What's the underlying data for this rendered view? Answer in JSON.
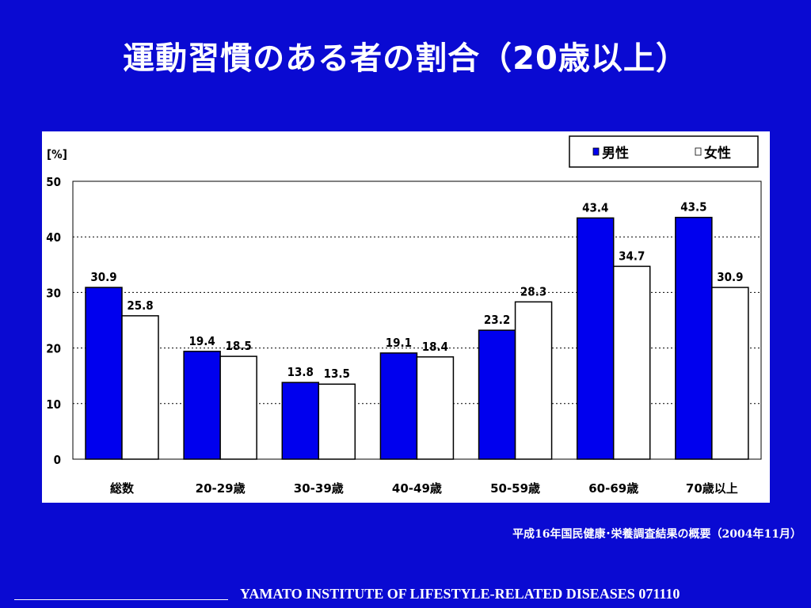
{
  "slide": {
    "title": "運動習慣のある者の割合（20歳以上）",
    "source": "平成16年国民健康･栄養調査結果の概要（2004年11月）",
    "footer": "YAMATO INSTITUTE OF LIFESTYLE-RELATED DISEASES  071110"
  },
  "chart_data": {
    "type": "bar",
    "title": "",
    "unit_label": "[%]",
    "xlabel": "",
    "ylabel": "",
    "ylim": [
      0,
      50
    ],
    "yticks": [
      "0",
      "10",
      "20",
      "30",
      "40",
      "50"
    ],
    "grid": "horizontal dotted",
    "legend_position": "top-right",
    "categories": [
      "総数",
      "20-29歳",
      "30-39歳",
      "40-49歳",
      "50-59歳",
      "60-69歳",
      "70歳以上"
    ],
    "series": [
      {
        "name": "男性",
        "color": "#0000ee",
        "values": [
          30.9,
          19.4,
          13.8,
          19.1,
          23.2,
          43.4,
          43.5
        ],
        "labels": [
          "30.9",
          "19.4",
          "13.8",
          "19.1",
          "23.2",
          "43.4",
          "43.5"
        ]
      },
      {
        "name": "女性",
        "color": "#ffffff",
        "values": [
          25.8,
          18.5,
          13.5,
          18.4,
          28.3,
          34.7,
          30.9
        ],
        "labels": [
          "25.8",
          "18.5",
          "13.5",
          "18.4",
          "28.3",
          "34.7",
          "30.9"
        ]
      }
    ]
  }
}
